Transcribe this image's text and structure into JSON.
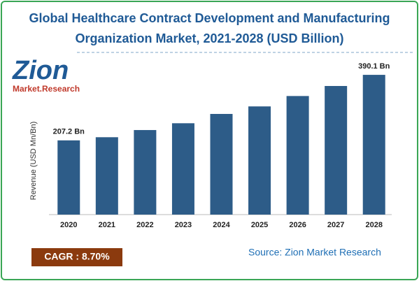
{
  "chart_data": {
    "type": "bar",
    "title": "Global Healthcare Contract Development and Manufacturing Organization Market, 2021-2028 (USD Billion)",
    "logo": {
      "name": "Zion",
      "tagline": "Market.Research"
    },
    "y_label": "Revenue (USD Mn/Bn)",
    "categories": [
      "2020",
      "2021",
      "2022",
      "2023",
      "2024",
      "2025",
      "2026",
      "2027",
      "2028"
    ],
    "values": [
      207.2,
      216,
      236,
      255,
      281,
      302,
      331,
      359,
      390.1
    ],
    "value_labels": [
      "207.2 Bn",
      null,
      null,
      null,
      null,
      null,
      null,
      null,
      "390.1 Bn"
    ],
    "color": "#2d5c88",
    "ylim": [
      0,
      400
    ],
    "cagr": "CAGR : 8.70%",
    "source": "Source: Zion Market Research"
  }
}
